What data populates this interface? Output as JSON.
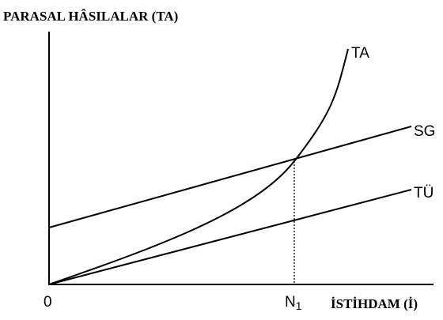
{
  "y_axis": {
    "label": "PARASAL HÂSILALAR (TA)"
  },
  "x_axis": {
    "label": "İSTİHDAM (İ)",
    "origin": "0",
    "point": {
      "label": "N",
      "subscript": "1"
    }
  },
  "curves": [
    {
      "label": "TA"
    },
    {
      "label": "SG"
    },
    {
      "label": "TÜ"
    }
  ]
}
